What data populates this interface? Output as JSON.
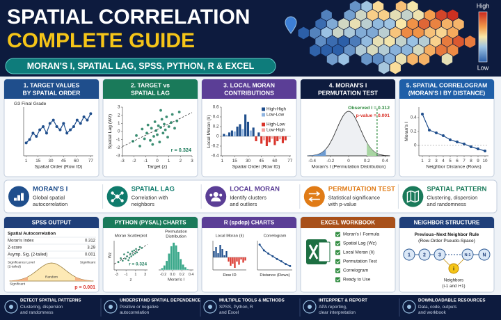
{
  "header": {
    "title_line1": "SPATIAL CORRELATION",
    "title_line2": "COMPLETE GUIDE",
    "banner": "MORAN'S I, SPATIAL LAG, SPSS, PYTHON, R & EXCEL",
    "legend_high": "High",
    "legend_low": "Low"
  },
  "panels": [
    {
      "title_lines": [
        "1. TARGET VALUES",
        "BY SPATIAL ORDER"
      ],
      "color": "#1f4e8c",
      "chart": {
        "type": "line",
        "subtitle": "G3 Final Grade",
        "xlabel": "Spatial Order (Row ID)",
        "x": [
          1,
          5,
          9,
          13,
          17,
          21,
          25,
          29,
          33,
          37,
          41,
          45,
          49,
          53,
          57,
          61,
          65,
          69,
          73,
          77
        ],
        "values": [
          8,
          9,
          11,
          10,
          12,
          13,
          11,
          14,
          15,
          13,
          12,
          14,
          11,
          12,
          13,
          15,
          14,
          16,
          15,
          17
        ],
        "xlim": [
          -2,
          80
        ],
        "ylim": [
          4,
          19
        ],
        "xticks": [
          1,
          15,
          30,
          45,
          60,
          77
        ],
        "color": "#1f4e8c"
      }
    },
    {
      "title_lines": [
        "2. TARGET vs",
        "SPATIAL LAG"
      ],
      "color": "#1a7a5a",
      "chart": {
        "type": "scatter",
        "xlabel": "Target (z)",
        "ylabel": "Spatial Lag (Wz)",
        "x": [
          -2.1,
          -1.8,
          -1.5,
          -1.3,
          -1.1,
          -0.9,
          -0.8,
          -0.6,
          -0.5,
          -0.3,
          -0.2,
          -0.1,
          0,
          0.1,
          0.2,
          0.3,
          0.4,
          0.5,
          0.6,
          0.7,
          0.8,
          0.9,
          1.0,
          1.2,
          1.3,
          1.5,
          1.7,
          1.9,
          -0.4,
          0.3
        ],
        "values": [
          -1.2,
          -0.5,
          -1.8,
          0.3,
          -0.9,
          -0.2,
          0.8,
          -1.1,
          0.4,
          -0.6,
          1.2,
          0.1,
          -0.4,
          0.7,
          -1.3,
          0.5,
          1.5,
          -0.2,
          0.9,
          0.2,
          1.8,
          -0.7,
          0.6,
          1.1,
          2.1,
          0.4,
          1.3,
          2.4,
          -1.6,
          2.6
        ],
        "xlim": [
          -3,
          3
        ],
        "ylim": [
          -3,
          3
        ],
        "xticks": [
          -3,
          -2,
          -1,
          0,
          1,
          2,
          3
        ],
        "yticks": [
          -3,
          -2,
          -1,
          0,
          1,
          2,
          3
        ],
        "annotation": "r = 0.324",
        "color": "#1a7a5a"
      }
    },
    {
      "title_lines": [
        "3. LOCAL MORAN",
        "CONTRIBUTIONS"
      ],
      "color": "#5b3e96",
      "chart": {
        "type": "bar",
        "xlabel": "Spatial Order (Row ID)",
        "ylabel": "Local Moran (Ii)",
        "x": [
          3,
          6,
          9,
          12,
          15,
          18,
          21,
          24,
          27,
          30,
          33,
          36,
          39,
          42,
          45,
          48,
          51,
          54,
          57,
          60,
          63,
          66,
          69,
          72
        ],
        "xlim": [
          0,
          78
        ],
        "ylim": [
          -0.4,
          0.6
        ],
        "xticks": [
          1,
          15,
          30,
          45,
          60,
          77
        ],
        "yticks": [
          -0.4,
          -0.2,
          0,
          0.2,
          0.4,
          0.6
        ],
        "series": [
          {
            "name": "High-High",
            "color": "#1f4e8c",
            "values": [
              0.05,
              null,
              0.08,
              0.12,
              null,
              0.2,
              0.25,
              null,
              0.45,
              0.3,
              null,
              0.18,
              null,
              0.08,
              null,
              null,
              null,
              null,
              null,
              null,
              null,
              null,
              null,
              null
            ]
          },
          {
            "name": "Low-Low",
            "color": "#8fb4e0",
            "values": [
              null,
              0.03,
              null,
              null,
              0.1,
              null,
              null,
              0.15,
              null,
              null,
              0.12,
              null,
              null,
              null,
              null,
              null,
              null,
              null,
              null,
              null,
              null,
              null,
              null,
              null
            ]
          },
          {
            "name": "High-Low",
            "color": "#d9342b",
            "values": [
              null,
              null,
              null,
              null,
              null,
              null,
              null,
              null,
              null,
              null,
              null,
              null,
              -0.1,
              null,
              -0.15,
              null,
              -0.2,
              -0.12,
              null,
              -0.18,
              -0.1,
              null,
              -0.14,
              -0.08
            ]
          },
          {
            "name": "Low-High",
            "color": "#f4a3a0",
            "values": [
              null,
              null,
              null,
              null,
              null,
              null,
              null,
              null,
              null,
              null,
              null,
              null,
              null,
              null,
              null,
              -0.08,
              null,
              null,
              -0.05,
              null,
              null,
              -0.06,
              null,
              null
            ]
          }
        ]
      }
    },
    {
      "title_lines": [
        "4. MORAN'S I",
        "PERMUTATION TEST"
      ],
      "color": "#0d1b3e",
      "chart": {
        "type": "density",
        "xlabel": "Moran's I (Permutation Distribution)",
        "xlim": [
          -0.45,
          0.45
        ],
        "xticks": [
          -0.4,
          -0.2,
          0,
          0.2,
          0.4
        ],
        "observed": 0.312,
        "observed_label": "Observed I = 0.312",
        "p_label": "p-value = 0.001"
      }
    },
    {
      "title_lines": [
        "5. SPATIAL CORRELOGRAM",
        "(MORAN'S I BY DISTANCE)"
      ],
      "color": "#1f5fa8",
      "chart": {
        "type": "line",
        "xlabel": "Neighbor Distance (Rows)",
        "ylabel": "Moran's I",
        "x": [
          1,
          2,
          3,
          4,
          5,
          6,
          7,
          8,
          9,
          10
        ],
        "values": [
          0.45,
          0.22,
          0.18,
          0.14,
          0.08,
          0.05,
          0.02,
          -0.02,
          -0.05,
          -0.08
        ],
        "xlim": [
          0.5,
          10.5
        ],
        "ylim": [
          -0.15,
          0.55
        ],
        "xticks": [
          1,
          2,
          3,
          4,
          5,
          6,
          7,
          8,
          9,
          10
        ],
        "yticks": [
          0,
          0.2,
          0.4
        ],
        "zero_line": true,
        "color": "#1f4e8c"
      }
    }
  ],
  "features": [
    {
      "title": "MORAN'S I",
      "desc": [
        "Global spatial",
        "autocorrelation"
      ],
      "color": "#1f4e8c"
    },
    {
      "title": "SPATIAL LAG",
      "desc": [
        "Correlation with",
        "neighbors"
      ],
      "color": "#0f7b6c"
    },
    {
      "title": "LOCAL MORAN",
      "desc": [
        "Identify clusters",
        "and outliers"
      ],
      "color": "#5b3e96"
    },
    {
      "title": "PERMUTATION TEST",
      "desc": [
        "Statistical significance",
        "with p-value"
      ],
      "color": "#e07b16"
    },
    {
      "title": "SPATIAL PATTERN",
      "desc": [
        "Clustering, dispersion",
        "and randomness"
      ],
      "color": "#1a7a5a"
    }
  ],
  "tools": [
    {
      "title": "SPSS OUTPUT",
      "color": "#1f3f7a",
      "table_title": "Spatial Autocorrelation",
      "rows": [
        [
          "Moran's Index",
          0.312
        ],
        [
          "Z-score",
          3.29
        ],
        [
          "Asymp. Sig. (2-tailed)",
          0.001
        ]
      ],
      "curve_labels": {
        "level": [
          "Significance Level",
          "(2-tailed)"
        ],
        "left": "Significant",
        "right": "Significant",
        "center": "Random"
      },
      "p_label": "p = 0.001"
    },
    {
      "title": "PYTHON (PYSAL) CHARTS",
      "color": "#1a7a5a",
      "charts": [
        {
          "type": "scatter",
          "title": "Moran Scatterplot",
          "xlabel": "z",
          "ylabel": "Wz",
          "x": [
            -2.6,
            -2.1,
            -1.7,
            -1.4,
            -1.1,
            -0.8,
            -0.6,
            -0.3,
            -0.1,
            0.1,
            0.3,
            0.5,
            0.7,
            0.9,
            1.1,
            1.3,
            1.6,
            1.9,
            2.3,
            -0.5
          ],
          "values": [
            -1.4,
            -0.6,
            -1.1,
            0.2,
            -0.7,
            -0.2,
            0.6,
            -0.5,
            0.3,
            -0.2,
            0.8,
            0.1,
            1.0,
            0.4,
            1.3,
            0.6,
            1.1,
            1.7,
            1.5,
            -1.0
          ],
          "xlim": [
            -3.5,
            3.5
          ],
          "ylim": [
            -3,
            3
          ],
          "xticks": [
            -3,
            -1,
            1,
            3
          ],
          "annotation": "r = 0.324",
          "color": "#1a7a5a"
        },
        {
          "type": "histogram",
          "title_lines": [
            "Permutation",
            "Distribution"
          ],
          "xlabel": "Moran's I",
          "bins": [
            -0.25,
            -0.2,
            -0.15,
            -0.1,
            -0.05,
            0,
            0.05,
            0.1,
            0.15,
            0.2,
            0.25,
            0.3,
            0.35
          ],
          "counts": [
            2,
            5,
            10,
            18,
            26,
            30,
            27,
            20,
            12,
            6,
            3,
            1
          ],
          "xlim": [
            -0.3,
            0.45
          ],
          "ylim": [
            0,
            32
          ],
          "xticks": [
            -0.2,
            {
              "value": 0,
              "label": "0.0"
            },
            0.2,
            0.4
          ],
          "color": "#3aa88a"
        }
      ]
    },
    {
      "title": "R (spdep) CHARTS",
      "color": "#5b3e96",
      "charts": [
        {
          "type": "bar",
          "title": "Local Moran (Ii)",
          "xlabel": "Row ID",
          "values": [
            0.3,
            0.5,
            0.2,
            0.6,
            0.4,
            0.1,
            0.3,
            -0.2,
            -0.4,
            -0.3,
            -0.5,
            -0.2,
            -0.35,
            -0.1,
            -0.25,
            -0.15
          ],
          "ylim": [
            -0.6,
            0.8
          ],
          "positive_color": "#1f4e8c",
          "negative_color": "#d9342b"
        },
        {
          "type": "line",
          "title": "Correlogram",
          "xlabel": "Distance (Rows)",
          "values": [
            0.45,
            0.3,
            0.22,
            0.15,
            0.08,
            0.02,
            -0.05,
            -0.1
          ],
          "ylim": [
            -0.2,
            0.55
          ],
          "color": "#1f4e8c"
        }
      ]
    },
    {
      "title": "EXCEL WORKBOOK",
      "color": "#a8501a",
      "items": [
        "Moran's I Formula",
        "Spatial Lag (Wz)",
        "Local Moran (Ii)",
        "Permutation Test",
        "Correlogram",
        "Ready to Use"
      ]
    },
    {
      "title": "NEIGHBOR STRUCTURE",
      "color": "#1f3f7a",
      "rule_lines": [
        "Previous–Next Neighbor Rule",
        "(Row-Order Pseudo-Space)"
      ],
      "nodes": [
        "1",
        "2",
        "3",
        "N-1",
        "N"
      ],
      "focus": "i",
      "note_lines": [
        "Neighbors",
        "(i-1 and i+1)"
      ]
    }
  ],
  "footer": [
    {
      "title": "DETECT SPATIAL PATTERNS",
      "desc": [
        "Clustering, dispersion",
        "and randomness"
      ]
    },
    {
      "title": "UNDERSTAND SPATIAL DEPENDENCE",
      "desc": [
        "Positive or negative",
        "autocorrelation"
      ]
    },
    {
      "title": "MULTIPLE TOOLS & METHODS",
      "desc": [
        "SPSS, Python, R",
        "and Excel"
      ]
    },
    {
      "title": "INTERPRET & REPORT",
      "desc": [
        "APA reporting,",
        "clear interpretation"
      ]
    },
    {
      "title": "DOWNLOADABLE RESOURCES",
      "desc": [
        "Data, code, outputs",
        "and workbook"
      ]
    }
  ]
}
